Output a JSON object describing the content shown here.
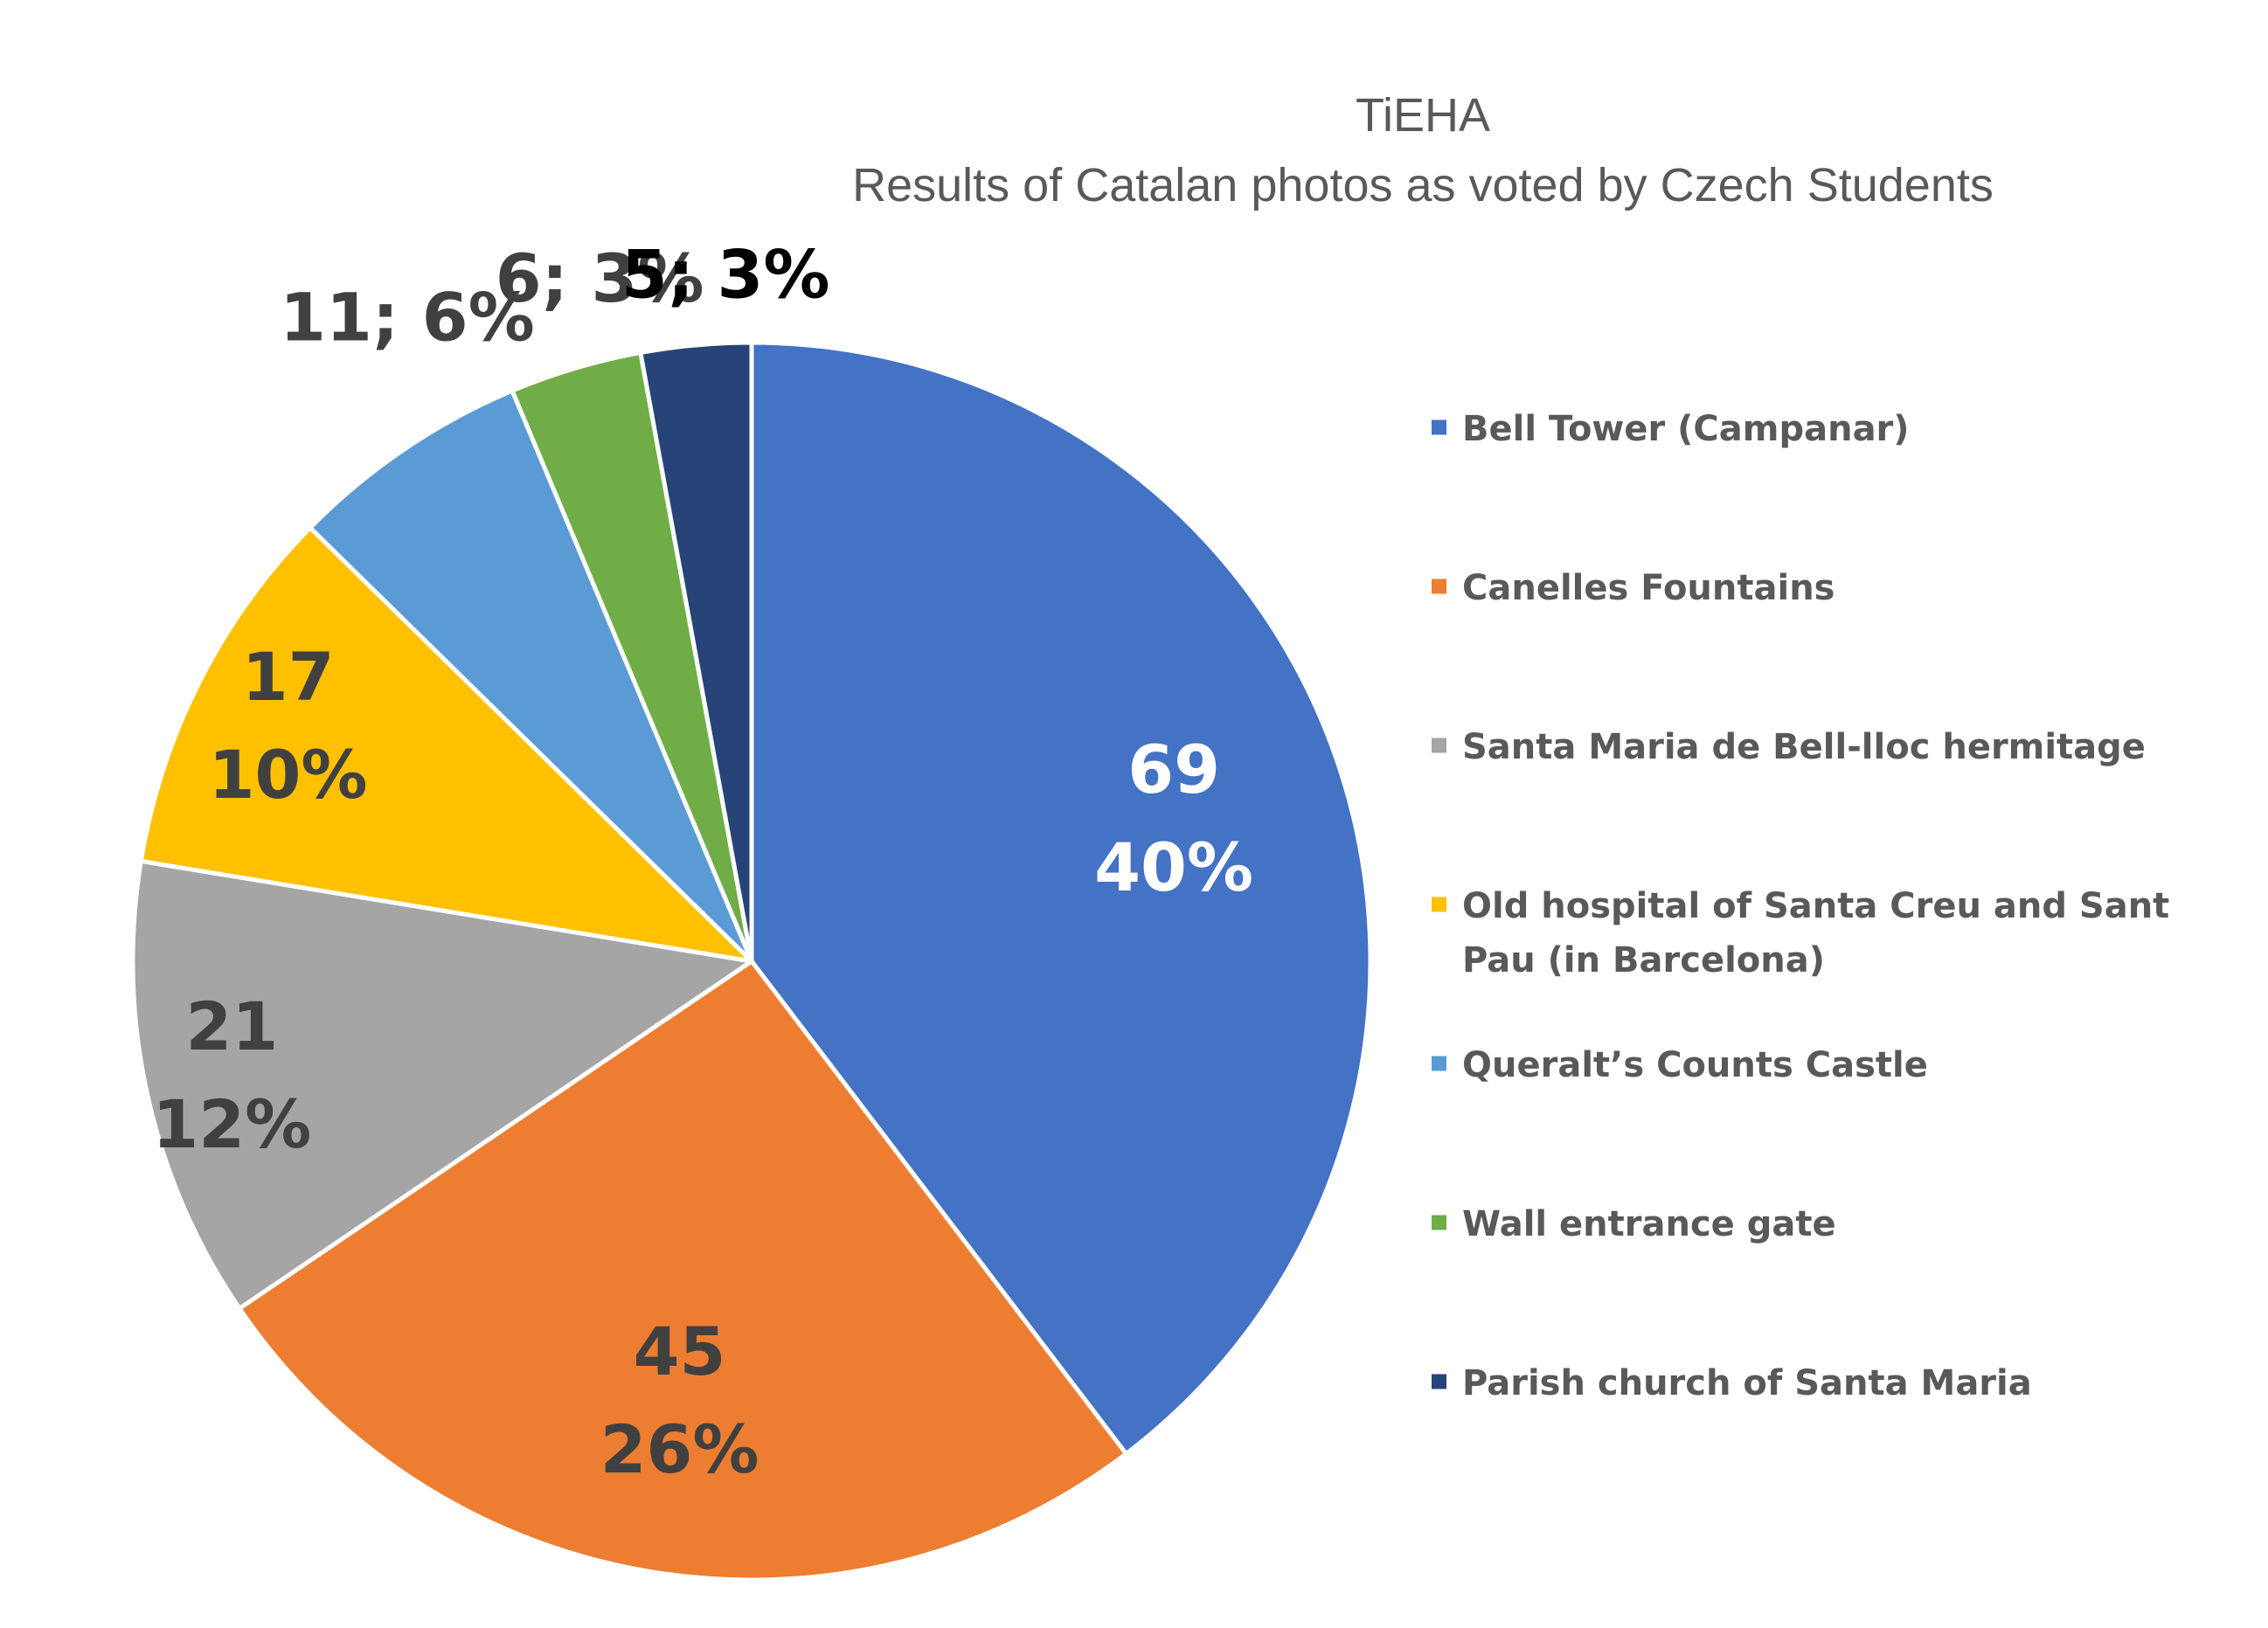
{
  "chart_data": {
    "type": "pie",
    "title": "TiEHA",
    "subtitle": "Results of Catalan photos as voted by Czech Students",
    "legend_position": "right",
    "slices": [
      {
        "name": "Bell Tower (Campanar)",
        "value": 69,
        "percent": "40%",
        "label": [
          "69",
          "40%"
        ],
        "color": "#4472C4",
        "label_color": "#ffffff"
      },
      {
        "name": "Canelles Fountains",
        "value": 45,
        "percent": "26%",
        "label": [
          "45",
          "26%"
        ],
        "color": "#ED7D31",
        "label_color": "#404040"
      },
      {
        "name": "Santa Maria de Bell-lloc hermitage",
        "value": 21,
        "percent": "12%",
        "label": [
          "21",
          "12%"
        ],
        "color": "#A5A5A5",
        "label_color": "#404040"
      },
      {
        "name": "Old hospital of Santa Creu and Sant Pau (in Barcelona)",
        "legend_lines": [
          "Old hospital of Santa Creu and Sant",
          "Pau (in Barcelona)"
        ],
        "value": 17,
        "percent": "10%",
        "label": [
          "17",
          "10%"
        ],
        "color": "#FFC000",
        "label_color": "#404040"
      },
      {
        "name": "Queralt’s Counts Castle",
        "value": 11,
        "percent": "6%",
        "label": [
          "11; 6%"
        ],
        "color": "#5B9BD5",
        "label_color": "#404040"
      },
      {
        "name": "Wall entrance gate",
        "value": 6,
        "percent": "3%",
        "label": [
          "6; 3%"
        ],
        "color": "#70AD47",
        "label_color": "#404040"
      },
      {
        "name": "Parish church of Santa Maria",
        "value": 5,
        "percent": "3%",
        "label": [
          "5; 3%"
        ],
        "color": "#264478",
        "label_color": "#000000"
      }
    ]
  }
}
